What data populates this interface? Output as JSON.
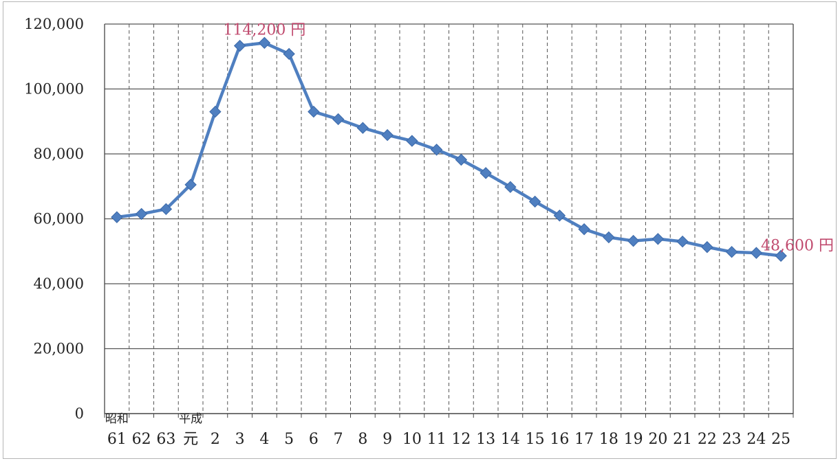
{
  "chart_data": {
    "type": "line",
    "title": "",
    "xlabel": "",
    "ylabel": "",
    "ylim": [
      0,
      120000
    ],
    "y_ticks": [
      0,
      20000,
      40000,
      60000,
      80000,
      100000,
      120000
    ],
    "y_tick_labels": [
      "0",
      "20,000",
      "40,000",
      "60,000",
      "80,000",
      "100,000",
      "120,000"
    ],
    "grid": {
      "horizontal": "solid",
      "vertical": "dashed"
    },
    "categories": [
      "61",
      "62",
      "63",
      "元",
      "2",
      "3",
      "4",
      "5",
      "6",
      "7",
      "8",
      "9",
      "10",
      "11",
      "12",
      "13",
      "14",
      "15",
      "16",
      "17",
      "18",
      "19",
      "20",
      "21",
      "22",
      "23",
      "24",
      "25"
    ],
    "era_labels": [
      {
        "text": "昭和",
        "category": "61"
      },
      {
        "text": "平成",
        "category": "元"
      }
    ],
    "series": [
      {
        "color": "#4f7fc0",
        "marker": "diamond",
        "values": [
          60500,
          61500,
          63000,
          70500,
          93000,
          113300,
          114200,
          110800,
          93000,
          90700,
          88000,
          85800,
          84000,
          81300,
          78200,
          74100,
          69800,
          65300,
          61000,
          56800,
          54300,
          53200,
          53800,
          53000,
          51300,
          49800,
          49500,
          48600
        ]
      }
    ],
    "annotations": [
      {
        "text": "114,200 円",
        "category": "4",
        "value": 114200
      },
      {
        "text": "48,600 円",
        "category": "25",
        "value": 48600
      }
    ]
  }
}
